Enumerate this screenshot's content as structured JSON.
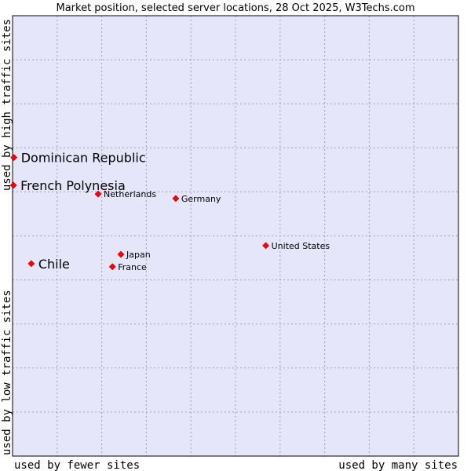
{
  "chart_data": {
    "type": "scatter",
    "title": "Market position, selected server locations, 28 Oct 2025, W3Techs.com",
    "xlabel_left": "used by fewer sites",
    "xlabel_right": "used by many sites",
    "ylabel_top": "used by high traffic sites",
    "ylabel_bottom": "used by low traffic sites",
    "xlim": [
      0,
      100
    ],
    "ylim": [
      0,
      100
    ],
    "grid": true,
    "points": [
      {
        "name": "Dominican Republic",
        "x": 0.3,
        "y": 67.8,
        "highlight": true
      },
      {
        "name": "French Polynesia",
        "x": 0.2,
        "y": 61.5,
        "highlight": true
      },
      {
        "name": "Chile",
        "x": 4.2,
        "y": 43.7,
        "highlight": true
      },
      {
        "name": "Netherlands",
        "x": 19.2,
        "y": 59.5,
        "highlight": false
      },
      {
        "name": "Germany",
        "x": 36.6,
        "y": 58.5,
        "highlight": false
      },
      {
        "name": "United States",
        "x": 56.8,
        "y": 47.8,
        "highlight": false
      },
      {
        "name": "Japan",
        "x": 24.3,
        "y": 45.8,
        "highlight": false
      },
      {
        "name": "France",
        "x": 22.4,
        "y": 43.0,
        "highlight": false
      }
    ]
  },
  "colors": {
    "plot_bg": "#e6e6fa",
    "grid": "#a0a0b0",
    "marker": "#ff0000",
    "border": "#000000"
  }
}
